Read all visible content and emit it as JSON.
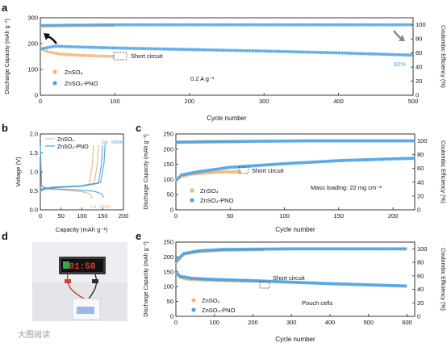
{
  "watermark": "大图阅读",
  "colors": {
    "znso4": "#F2B47A",
    "pno": "#4BA3E0",
    "arrow_left": "#111111",
    "arrow_right": "#888888"
  },
  "chart_data": [
    {
      "panel": "a",
      "type": "scatter",
      "xlabel": "Cycle number",
      "ylabel": "Discharge Capacity (mAh g⁻¹)",
      "y2label": "Coulombic Efficiency (%)",
      "xlim": [
        0,
        500
      ],
      "ylim": [
        0,
        300
      ],
      "y2lim": [
        0,
        110
      ],
      "xticks": [
        0,
        100,
        200,
        300,
        400,
        500
      ],
      "yticks": [
        0,
        100,
        200,
        300
      ],
      "y2ticks": [
        0,
        20,
        40,
        60,
        80,
        100
      ],
      "legend": [
        "ZnSO₄",
        "ZnSO₄-PNO"
      ],
      "annotations": {
        "short": "Short circuit",
        "rate": "0.2 A g⁻¹",
        "retention": "82%"
      },
      "series": [
        {
          "name": "ZnSO₄",
          "axis": "left",
          "points": [
            [
              1,
              180
            ],
            [
              10,
              168
            ],
            [
              25,
              160
            ],
            [
              50,
              155
            ],
            [
              75,
              152
            ],
            [
              100,
              150
            ]
          ]
        },
        {
          "name": "ZnSO₄",
          "axis": "right",
          "points": [
            [
              1,
              98
            ],
            [
              50,
              99
            ],
            [
              100,
              99
            ]
          ]
        },
        {
          "name": "ZnSO₄-PNO",
          "axis": "left",
          "points": [
            [
              1,
              180
            ],
            [
              20,
              190
            ],
            [
              50,
              187
            ],
            [
              100,
              183
            ],
            [
              200,
              177
            ],
            [
              300,
              171
            ],
            [
              400,
              164
            ],
            [
              500,
              155
            ]
          ]
        },
        {
          "name": "ZnSO₄-PNO",
          "axis": "right",
          "points": [
            [
              1,
              99
            ],
            [
              100,
              100
            ],
            [
              300,
              100
            ],
            [
              500,
              100
            ]
          ]
        }
      ]
    },
    {
      "panel": "b",
      "type": "line",
      "xlabel": "Capacity (mAh g⁻¹)",
      "ylabel": "Voltage (V)",
      "xlim": [
        0,
        200
      ],
      "ylim": [
        0.0,
        2.0
      ],
      "xticks": [
        0,
        50,
        100,
        150,
        200
      ],
      "yticks": [
        0.0,
        0.5,
        1.0,
        1.5,
        2.0
      ],
      "legend": [
        "ZnSO₄",
        "ZnSO₄-PNO"
      ],
      "annotations": {
        "first": "1st",
        "hundredth": "100th",
        "five_hundredth": "500th"
      },
      "series": [
        {
          "name": "ZnSO₄",
          "points": [
            [
              0,
              1.68
            ],
            [
              3,
              0.62
            ],
            [
              15,
              0.55
            ],
            [
              60,
              0.52
            ],
            [
              100,
              0.48
            ],
            [
              120,
              0.42
            ],
            [
              125,
              0.3
            ]
          ]
        },
        {
          "name": "ZnSO₄",
          "points": [
            [
              0,
              0.5
            ],
            [
              30,
              0.58
            ],
            [
              90,
              0.62
            ],
            [
              118,
              0.68
            ],
            [
              125,
              1.2
            ],
            [
              128,
              1.7
            ]
          ]
        },
        {
          "name": "ZnSO₄",
          "points": [
            [
              0,
              0.52
            ],
            [
              30,
              0.6
            ],
            [
              100,
              0.64
            ],
            [
              130,
              0.7
            ],
            [
              137,
              1.2
            ],
            [
              140,
              1.7
            ]
          ]
        },
        {
          "name": "ZnSO₄-PNO",
          "points": [
            [
              0,
              1.68
            ],
            [
              3,
              0.62
            ],
            [
              20,
              0.56
            ],
            [
              80,
              0.53
            ],
            [
              130,
              0.49
            ],
            [
              148,
              0.42
            ],
            [
              152,
              0.32
            ]
          ]
        },
        {
          "name": "ZnSO₄-PNO",
          "points": [
            [
              0,
              0.52
            ],
            [
              30,
              0.58
            ],
            [
              100,
              0.62
            ],
            [
              140,
              0.7
            ],
            [
              147,
              1.2
            ],
            [
              150,
              1.7
            ]
          ]
        },
        {
          "name": "ZnSO₄-PNO",
          "points": [
            [
              0,
              0.55
            ],
            [
              30,
              0.6
            ],
            [
              100,
              0.63
            ],
            [
              145,
              0.72
            ],
            [
              153,
              1.2
            ],
            [
              156,
              1.75
            ]
          ]
        }
      ]
    },
    {
      "panel": "c",
      "type": "scatter",
      "xlabel": "Cycle number",
      "ylabel": "Discharge Capacity (mAh g⁻¹)",
      "y2label": "Coulombic Efficiency (%)",
      "xlim": [
        0,
        220
      ],
      "ylim": [
        0,
        250
      ],
      "y2lim": [
        0,
        110
      ],
      "xticks": [
        0,
        50,
        100,
        150,
        200
      ],
      "yticks": [
        0,
        50,
        100,
        150,
        200,
        250
      ],
      "y2ticks": [
        0,
        20,
        40,
        60,
        80,
        100
      ],
      "legend": [
        "ZnSO₄",
        "ZnSO₄-PNO"
      ],
      "annotations": {
        "short": "Short circuit",
        "loading": "Mass loading: 22 mg cm⁻²"
      },
      "series": [
        {
          "name": "ZnSO₄",
          "axis": "left",
          "points": [
            [
              1,
              100
            ],
            [
              5,
              110
            ],
            [
              15,
              118
            ],
            [
              30,
              122
            ],
            [
              45,
              125
            ],
            [
              60,
              125
            ]
          ]
        },
        {
          "name": "ZnSO₄",
          "axis": "right",
          "points": [
            [
              1,
              98
            ],
            [
              30,
              99
            ],
            [
              60,
              99
            ]
          ]
        },
        {
          "name": "ZnSO₄-PNO",
          "axis": "left",
          "points": [
            [
              1,
              100
            ],
            [
              5,
              115
            ],
            [
              20,
              125
            ],
            [
              50,
              140
            ],
            [
              100,
              152
            ],
            [
              150,
              162
            ],
            [
              200,
              168
            ],
            [
              220,
              170
            ]
          ]
        },
        {
          "name": "ZnSO₄-PNO",
          "axis": "right",
          "points": [
            [
              1,
              98
            ],
            [
              50,
              99
            ],
            [
              120,
              100
            ],
            [
              220,
              100
            ]
          ]
        }
      ]
    },
    {
      "panel": "e",
      "type": "scatter",
      "xlabel": "Cycle number",
      "ylabel": "Discharge Capacity (mAh g⁻¹)",
      "y2label": "Coulombic Efficiency (%)",
      "xlim": [
        0,
        620
      ],
      "ylim": [
        0,
        250
      ],
      "y2lim": [
        0,
        110
      ],
      "xticks": [
        0,
        100,
        200,
        300,
        400,
        500,
        600
      ],
      "yticks": [
        0,
        50,
        100,
        150,
        200,
        250
      ],
      "y2ticks": [
        0,
        20,
        40,
        60,
        80,
        100
      ],
      "legend": [
        "ZnSO₄",
        "ZnSO₄-PNO"
      ],
      "annotations": {
        "short": "Short circuit",
        "cells": "Pouch cells"
      },
      "series": [
        {
          "name": "ZnSO₄",
          "axis": "left",
          "points": [
            [
              1,
              145
            ],
            [
              10,
              132
            ],
            [
              30,
              125
            ],
            [
              80,
              122
            ],
            [
              150,
              120
            ],
            [
              230,
              118
            ]
          ]
        },
        {
          "name": "ZnSO₄",
          "axis": "right",
          "points": [
            [
              1,
              80
            ],
            [
              20,
              92
            ],
            [
              60,
              96
            ],
            [
              120,
              98
            ],
            [
              230,
              99
            ]
          ]
        },
        {
          "name": "ZnSO₄-PNO",
          "axis": "left",
          "points": [
            [
              1,
              150
            ],
            [
              10,
              135
            ],
            [
              40,
              128
            ],
            [
              100,
              124
            ],
            [
              200,
              120
            ],
            [
              300,
              115
            ],
            [
              400,
              110
            ],
            [
              500,
              106
            ],
            [
              600,
              102
            ]
          ]
        },
        {
          "name": "ZnSO₄-PNO",
          "axis": "right",
          "points": [
            [
              1,
              82
            ],
            [
              20,
              93
            ],
            [
              60,
              97
            ],
            [
              120,
              99
            ],
            [
              300,
              100
            ],
            [
              600,
              100
            ]
          ]
        }
      ]
    }
  ],
  "photo": {
    "display_digits": "01:58"
  }
}
